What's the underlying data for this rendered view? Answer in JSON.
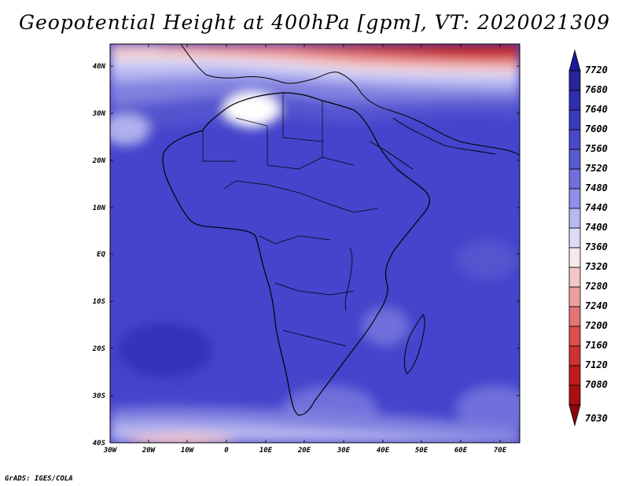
{
  "title": "Geopotential Height at 400hPa [gpm], VT: 2020021309",
  "credit": "GrADS: IGES/COLA",
  "map": {
    "lon_labels": [
      "30W",
      "20W",
      "10W",
      "0",
      "10E",
      "20E",
      "30E",
      "40E",
      "50E",
      "60E",
      "70E"
    ],
    "lat_labels": [
      "40N",
      "30N",
      "20N",
      "10N",
      "EQ",
      "10S",
      "20S",
      "30S",
      "40S"
    ],
    "background_color": "#4444cc",
    "coastline_color": "#000000"
  },
  "colorbar": {
    "levels": [
      "7720",
      "7680",
      "7640",
      "7600",
      "7560",
      "7520",
      "7480",
      "7440",
      "7400",
      "7360",
      "7320",
      "7280",
      "7240",
      "7200",
      "7160",
      "7120",
      "7080",
      "7030"
    ],
    "colors": [
      "#1a1a99",
      "#262699",
      "#2f2fae",
      "#3b3bbe",
      "#4848c8",
      "#5a5ad0",
      "#7070dc",
      "#9090e8",
      "#b8b8f2",
      "#dcdcf8",
      "#f8e8e8",
      "#f4c6c6",
      "#ec9e9e",
      "#e47474",
      "#dc4e4e",
      "#d03232",
      "#c01c1c",
      "#a81010",
      "#8c0a0a"
    ]
  }
}
